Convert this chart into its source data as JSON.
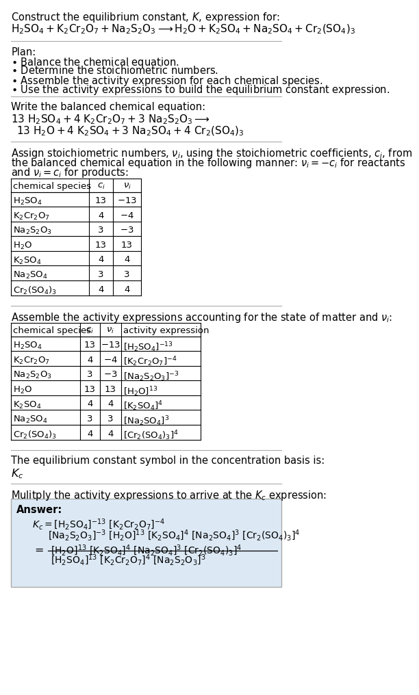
{
  "bg_color": "#ffffff",
  "text_color": "#000000",
  "title_line1": "Construct the equilibrium constant, $K$, expression for:",
  "reaction_unbalanced": "$\\mathrm{H_2SO_4 + K_2Cr_2O_7 + Na_2S_2O_3 \\longrightarrow H_2O + K_2SO_4 + Na_2SO_4 + Cr_2(SO_4)_3}$",
  "plan_header": "Plan:",
  "plan_items": [
    "$\\bullet$ Balance the chemical equation.",
    "$\\bullet$ Determine the stoichiometric numbers.",
    "$\\bullet$ Assemble the activity expression for each chemical species.",
    "$\\bullet$ Use the activity expressions to build the equilibrium constant expression."
  ],
  "balanced_header": "Write the balanced chemical equation:",
  "balanced_eq_line1": "$\\mathrm{13\\ H_2SO_4 + 4\\ K_2Cr_2O_7 + 3\\ Na_2S_2O_3 \\longrightarrow}$",
  "balanced_eq_line2": "$\\mathrm{13\\ H_2O + 4\\ K_2SO_4 + 3\\ Na_2SO_4 + 4\\ Cr_2(SO_4)_3}$",
  "stoich_header_lines": [
    "Assign stoichiometric numbers, $\\nu_i$, using the stoichiometric coefficients, $c_i$, from",
    "the balanced chemical equation in the following manner: $\\nu_i = -c_i$ for reactants",
    "and $\\nu_i = c_i$ for products:"
  ],
  "table1_headers": [
    "chemical species",
    "$c_i$",
    "$\\nu_i$"
  ],
  "table1_data": [
    [
      "$\\mathrm{H_2SO_4}$",
      "13",
      "$-13$"
    ],
    [
      "$\\mathrm{K_2Cr_2O_7}$",
      "4",
      "$-4$"
    ],
    [
      "$\\mathrm{Na_2S_2O_3}$",
      "3",
      "$-3$"
    ],
    [
      "$\\mathrm{H_2O}$",
      "13",
      "13"
    ],
    [
      "$\\mathrm{K_2SO_4}$",
      "4",
      "4"
    ],
    [
      "$\\mathrm{Na_2SO_4}$",
      "3",
      "3"
    ],
    [
      "$\\mathrm{Cr_2(SO_4)_3}$",
      "4",
      "4"
    ]
  ],
  "activity_header": "Assemble the activity expressions accounting for the state of matter and $\\nu_i$:",
  "table2_headers": [
    "chemical species",
    "$c_i$",
    "$\\nu_i$",
    "activity expression"
  ],
  "table2_data": [
    [
      "$\\mathrm{H_2SO_4}$",
      "13",
      "$-13$",
      "$[\\mathrm{H_2SO_4}]^{-13}$"
    ],
    [
      "$\\mathrm{K_2Cr_2O_7}$",
      "4",
      "$-4$",
      "$[\\mathrm{K_2Cr_2O_7}]^{-4}$"
    ],
    [
      "$\\mathrm{Na_2S_2O_3}$",
      "3",
      "$-3$",
      "$[\\mathrm{Na_2S_2O_3}]^{-3}$"
    ],
    [
      "$\\mathrm{H_2O}$",
      "13",
      "13",
      "$[\\mathrm{H_2O}]^{13}$"
    ],
    [
      "$\\mathrm{K_2SO_4}$",
      "4",
      "4",
      "$[\\mathrm{K_2SO_4}]^{4}$"
    ],
    [
      "$\\mathrm{Na_2SO_4}$",
      "3",
      "3",
      "$[\\mathrm{Na_2SO_4}]^{3}$"
    ],
    [
      "$\\mathrm{Cr_2(SO_4)_3}$",
      "4",
      "4",
      "$[\\mathrm{Cr_2(SO_4)_3}]^{4}$"
    ]
  ],
  "kc_text": "The equilibrium constant symbol in the concentration basis is:",
  "kc_symbol": "$K_c$",
  "multiply_header": "Mulitply the activity expressions to arrive at the $K_c$ expression:",
  "answer_box_color": "#dce9f5",
  "answer_label": "Answer:",
  "answer_line1": "$K_c = [\\mathrm{H_2SO_4}]^{-13}\\ [\\mathrm{K_2Cr_2O_7}]^{-4}$",
  "answer_line2": "$[\\mathrm{Na_2S_2O_3}]^{-3}\\ [\\mathrm{H_2O}]^{13}\\ [\\mathrm{K_2SO_4}]^{4}\\ [\\mathrm{Na_2SO_4}]^{3}\\ [\\mathrm{Cr_2(SO_4)_3}]^{4}$",
  "answer_line3": "$[\\mathrm{H_2O}]^{13}\\ [\\mathrm{K_2SO_4}]^{4}\\ [\\mathrm{Na_2SO_4}]^{3}\\ [\\mathrm{Cr_2(SO_4)_3}]^{4}$",
  "answer_denom": "$[\\mathrm{H_2SO_4}]^{13}\\ [\\mathrm{K_2Cr_2O_7}]^{4}\\ [\\mathrm{Na_2S_2O_3}]^{3}$"
}
